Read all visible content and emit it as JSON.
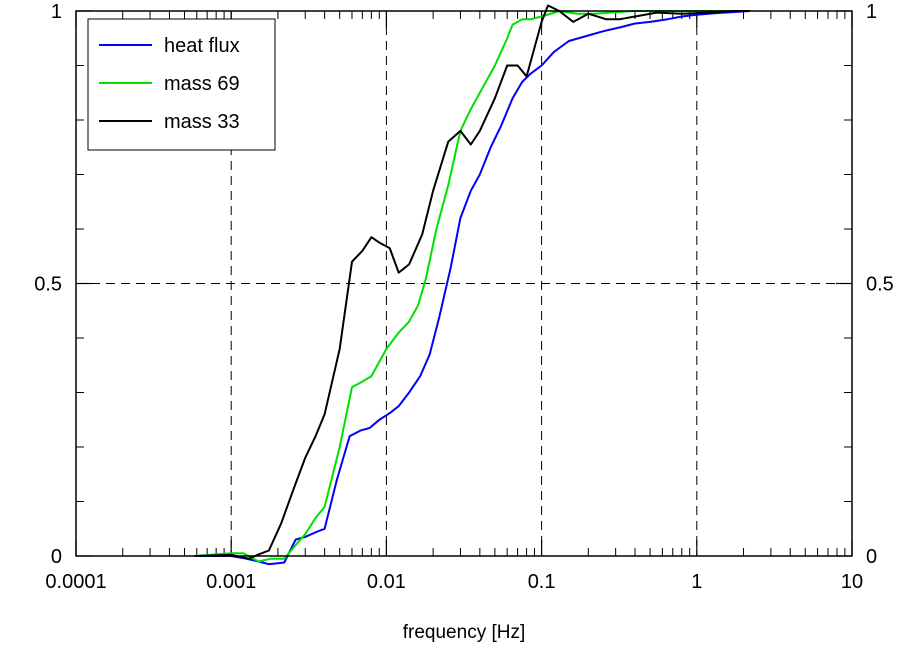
{
  "chart_data": {
    "type": "line",
    "title": "",
    "xlabel": "frequency [Hz]",
    "ylabel": "",
    "x_scale": "log",
    "xlim": [
      0.0001,
      10
    ],
    "ylim": [
      0,
      1
    ],
    "x_ticks": [
      {
        "value": 0.0001,
        "label": "0.0001"
      },
      {
        "value": 0.001,
        "label": "0.001"
      },
      {
        "value": 0.01,
        "label": "0.01"
      },
      {
        "value": 0.1,
        "label": "0.1"
      },
      {
        "value": 1,
        "label": "1"
      },
      {
        "value": 10,
        "label": "10"
      }
    ],
    "y_ticks": [
      {
        "value": 0,
        "label": "0"
      },
      {
        "value": 0.5,
        "label": "0.5"
      },
      {
        "value": 1,
        "label": "1"
      }
    ],
    "right_axis_mirrored": true,
    "grid": true,
    "grid_style": "dashed",
    "legend_position": "top-left",
    "series": [
      {
        "name": "heat flux",
        "color": "#0000ff",
        "points": [
          [
            0.00058,
            0.0
          ],
          [
            0.001,
            0.0
          ],
          [
            0.00125,
            -0.005
          ],
          [
            0.0015,
            -0.01
          ],
          [
            0.00175,
            -0.015
          ],
          [
            0.0022,
            -0.012
          ],
          [
            0.0026,
            0.03
          ],
          [
            0.003,
            0.035
          ],
          [
            0.0036,
            0.045
          ],
          [
            0.004,
            0.05
          ],
          [
            0.0048,
            0.14
          ],
          [
            0.0058,
            0.22
          ],
          [
            0.0068,
            0.23
          ],
          [
            0.0078,
            0.235
          ],
          [
            0.009,
            0.25
          ],
          [
            0.0105,
            0.262
          ],
          [
            0.012,
            0.275
          ],
          [
            0.014,
            0.3
          ],
          [
            0.0165,
            0.33
          ],
          [
            0.019,
            0.37
          ],
          [
            0.022,
            0.44
          ],
          [
            0.026,
            0.53
          ],
          [
            0.03,
            0.62
          ],
          [
            0.035,
            0.67
          ],
          [
            0.04,
            0.7
          ],
          [
            0.047,
            0.75
          ],
          [
            0.055,
            0.79
          ],
          [
            0.065,
            0.84
          ],
          [
            0.075,
            0.87
          ],
          [
            0.085,
            0.885
          ],
          [
            0.1,
            0.9
          ],
          [
            0.12,
            0.925
          ],
          [
            0.15,
            0.945
          ],
          [
            0.2,
            0.955
          ],
          [
            0.25,
            0.963
          ],
          [
            0.32,
            0.97
          ],
          [
            0.4,
            0.977
          ],
          [
            0.5,
            0.98
          ],
          [
            0.65,
            0.985
          ],
          [
            0.8,
            0.99
          ],
          [
            1.0,
            0.993
          ],
          [
            1.3,
            0.996
          ],
          [
            1.7,
            0.998
          ],
          [
            2.2,
            1.0
          ]
        ]
      },
      {
        "name": "mass 69",
        "color": "#00e000",
        "points": [
          [
            0.00058,
            0.0
          ],
          [
            0.001,
            0.005
          ],
          [
            0.0012,
            0.005
          ],
          [
            0.0015,
            -0.01
          ],
          [
            0.0018,
            -0.005
          ],
          [
            0.0022,
            -0.005
          ],
          [
            0.0026,
            0.02
          ],
          [
            0.003,
            0.04
          ],
          [
            0.0035,
            0.07
          ],
          [
            0.004,
            0.09
          ],
          [
            0.005,
            0.2
          ],
          [
            0.006,
            0.31
          ],
          [
            0.007,
            0.32
          ],
          [
            0.008,
            0.33
          ],
          [
            0.01,
            0.38
          ],
          [
            0.012,
            0.41
          ],
          [
            0.014,
            0.43
          ],
          [
            0.016,
            0.46
          ],
          [
            0.018,
            0.51
          ],
          [
            0.021,
            0.6
          ],
          [
            0.025,
            0.68
          ],
          [
            0.03,
            0.78
          ],
          [
            0.035,
            0.82
          ],
          [
            0.04,
            0.85
          ],
          [
            0.05,
            0.9
          ],
          [
            0.06,
            0.95
          ],
          [
            0.065,
            0.975
          ],
          [
            0.075,
            0.985
          ],
          [
            0.085,
            0.985
          ],
          [
            0.1,
            0.99
          ],
          [
            0.13,
            1.0
          ],
          [
            0.17,
            0.995
          ],
          [
            0.22,
            0.995
          ],
          [
            0.3,
            0.998
          ],
          [
            0.4,
            1.0
          ],
          [
            0.6,
            1.0
          ],
          [
            1.0,
            1.0
          ],
          [
            1.5,
            1.0
          ],
          [
            2.2,
            1.0
          ]
        ]
      },
      {
        "name": "mass 33",
        "color": "#000000",
        "points": [
          [
            0.00058,
            0.0
          ],
          [
            0.001,
            0.002
          ],
          [
            0.0013,
            -0.005
          ],
          [
            0.0015,
            0.003
          ],
          [
            0.00175,
            0.01
          ],
          [
            0.0021,
            0.06
          ],
          [
            0.0025,
            0.12
          ],
          [
            0.003,
            0.18
          ],
          [
            0.0035,
            0.22
          ],
          [
            0.004,
            0.26
          ],
          [
            0.005,
            0.38
          ],
          [
            0.006,
            0.54
          ],
          [
            0.007,
            0.56
          ],
          [
            0.008,
            0.585
          ],
          [
            0.009,
            0.575
          ],
          [
            0.0105,
            0.565
          ],
          [
            0.012,
            0.52
          ],
          [
            0.014,
            0.535
          ],
          [
            0.017,
            0.59
          ],
          [
            0.02,
            0.67
          ],
          [
            0.025,
            0.76
          ],
          [
            0.03,
            0.78
          ],
          [
            0.035,
            0.755
          ],
          [
            0.04,
            0.78
          ],
          [
            0.05,
            0.84
          ],
          [
            0.06,
            0.9
          ],
          [
            0.07,
            0.9
          ],
          [
            0.08,
            0.88
          ],
          [
            0.1,
            0.98
          ],
          [
            0.11,
            1.01
          ],
          [
            0.13,
            1.0
          ],
          [
            0.16,
            0.98
          ],
          [
            0.2,
            0.995
          ],
          [
            0.26,
            0.985
          ],
          [
            0.32,
            0.985
          ],
          [
            0.4,
            0.99
          ],
          [
            0.55,
            0.997
          ],
          [
            0.8,
            0.995
          ],
          [
            1.2,
            0.997
          ],
          [
            1.7,
            1.0
          ],
          [
            2.2,
            1.0
          ]
        ]
      }
    ]
  }
}
